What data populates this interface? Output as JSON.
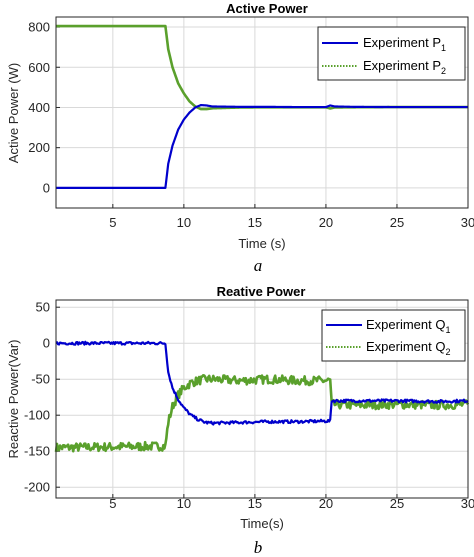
{
  "chart_data": [
    {
      "type": "line",
      "title": "Active Power",
      "xlabel": "Time (s)",
      "ylabel": "Active Power (W)",
      "xlim": [
        1,
        30
      ],
      "ylim": [
        -100,
        850
      ],
      "xticks": [
        "5",
        "10",
        "15",
        "20",
        "25",
        "30"
      ],
      "xtick_values": [
        5,
        10,
        15,
        20,
        25,
        30
      ],
      "yticks": [
        "0",
        "200",
        "400",
        "600",
        "800"
      ],
      "ytick_values": [
        0,
        200,
        400,
        600,
        800
      ],
      "grid": true,
      "legend_position": "top-right",
      "caption": "a",
      "series": [
        {
          "name": "Experiment P",
          "name_sub": "1",
          "color": "#0000cc",
          "style": "solid",
          "x": [
            1,
            8.7,
            8.9,
            9.2,
            9.6,
            10.0,
            10.4,
            10.8,
            11.2,
            11.6,
            12,
            14,
            16,
            18,
            20,
            20.3,
            20.6,
            22,
            25,
            28,
            30
          ],
          "y": [
            0,
            0,
            120,
            210,
            290,
            340,
            375,
            400,
            412,
            410,
            405,
            403,
            403,
            402,
            402,
            410,
            405,
            403,
            402,
            402,
            402
          ]
        },
        {
          "name": "Experiment P",
          "name_sub": "2",
          "color": "#5aa02c",
          "style": "dotted",
          "x": [
            1,
            8.7,
            8.9,
            9.2,
            9.6,
            10.0,
            10.4,
            10.8,
            11.2,
            11.6,
            12,
            14,
            16,
            18,
            20,
            20.3,
            20.6,
            22,
            25,
            28,
            30
          ],
          "y": [
            805,
            805,
            690,
            600,
            520,
            470,
            430,
            405,
            392,
            392,
            396,
            400,
            401,
            401,
            401,
            395,
            400,
            401,
            402,
            402,
            402
          ]
        }
      ]
    },
    {
      "type": "line",
      "title": "Reative Power",
      "xlabel": "Time(s)",
      "ylabel": "Reactive Power(Var)",
      "xlim": [
        1,
        30
      ],
      "ylim": [
        -215,
        60
      ],
      "xticks": [
        "5",
        "10",
        "15",
        "20",
        "25",
        "30"
      ],
      "xtick_values": [
        5,
        10,
        15,
        20,
        25,
        30
      ],
      "yticks": [
        "50",
        "0",
        "-50",
        "-100",
        "-150",
        "-200"
      ],
      "ytick_values": [
        50,
        0,
        -50,
        -100,
        -150,
        -200
      ],
      "grid": true,
      "legend_position": "top-right",
      "caption": "b",
      "series": [
        {
          "name": "Experiment Q",
          "name_sub": "1",
          "color": "#0000cc",
          "style": "solid",
          "x": [
            1,
            8.7,
            8.9,
            9.2,
            9.6,
            10.0,
            10.5,
            11.0,
            11.5,
            12,
            14,
            16,
            18,
            20.3,
            20.4,
            22,
            25,
            28,
            30
          ],
          "y": [
            0,
            0,
            -40,
            -62,
            -78,
            -90,
            -100,
            -106,
            -110,
            -111,
            -110,
            -109,
            -109,
            -108,
            -80,
            -80,
            -80,
            -81,
            -80
          ],
          "noise": 2
        },
        {
          "name": "Experiment Q",
          "name_sub": "2",
          "color": "#5aa02c",
          "style": "dotted",
          "x": [
            1,
            8.7,
            8.9,
            9.2,
            9.6,
            10.0,
            10.5,
            11.0,
            11.5,
            12,
            14,
            16,
            18,
            20.3,
            20.4,
            22,
            25,
            28,
            30
          ],
          "y": [
            -145,
            -143,
            -110,
            -88,
            -72,
            -62,
            -55,
            -52,
            -50,
            -50,
            -52,
            -50,
            -52,
            -52,
            -85,
            -86,
            -85,
            -86,
            -85
          ],
          "noise": 6
        }
      ]
    }
  ]
}
